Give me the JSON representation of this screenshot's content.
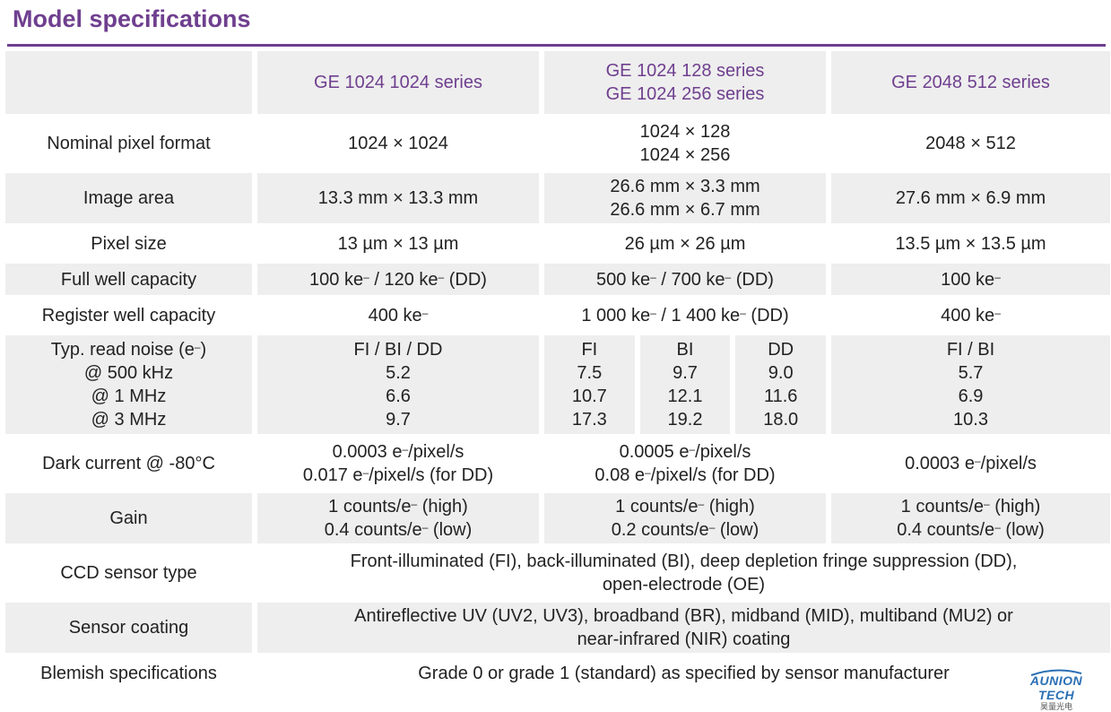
{
  "title": "Model specifications",
  "columns": [
    "GE 1024 1024 series",
    "GE 1024 128 series",
    "GE 1024 256 series",
    "GE 2048 512 series"
  ],
  "rows": {
    "pixel_format": {
      "label": "Nominal pixel format",
      "c1": "1024 × 1024",
      "c2a": "1024 × 128",
      "c2b": "1024 × 256",
      "c3": "2048 × 512"
    },
    "image_area": {
      "label": "Image area",
      "c1": "13.3 mm × 13.3 mm",
      "c2a": "26.6 mm × 3.3 mm",
      "c2b": "26.6 mm × 6.7 mm",
      "c3": "27.6 mm × 6.9 mm"
    },
    "pixel_size": {
      "label": "Pixel size",
      "c1": "13 µm × 13 µm",
      "c2": "26 µm × 26 µm",
      "c3": "13.5 µm × 13.5 µm"
    },
    "full_well": {
      "label": "Full well capacity",
      "c1a": "100 ke",
      "c1b": " / 120 ke",
      "c1c": " (DD)",
      "c2a": "500 ke",
      "c2b": " / 700 ke",
      "c2c": " (DD)",
      "c3": "100 ke"
    },
    "register_well": {
      "label": "Register well capacity",
      "c1": "400 ke",
      "c2a": "1 000 ke",
      "c2b": " / 1 400 ke",
      "c2c": " (DD)",
      "c3": "400 ke"
    },
    "read_noise": {
      "label_a": "Typ. read noise (e",
      "label_b": ")",
      "label_lines": [
        "@ 500 kHz",
        "@ 1 MHz",
        "@ 3 MHz"
      ],
      "c1": [
        "FI / BI / DD",
        "5.2",
        "6.6",
        "9.7"
      ],
      "c2_fi": [
        "FI",
        "7.5",
        "10.7",
        "17.3"
      ],
      "c2_bi": [
        "BI",
        "9.7",
        "12.1",
        "19.2"
      ],
      "c2_dd": [
        "DD",
        "9.0",
        "11.6",
        "18.0"
      ],
      "c3": [
        "FI / BI",
        "5.7",
        "6.9",
        "10.3"
      ]
    },
    "dark_current": {
      "label": "Dark current @ -80°C",
      "c1a": "0.0003 e",
      "c1a_s": "/pixel/s",
      "c1b": "0.017 e",
      "c1b_s": "/pixel/s (for DD)",
      "c2a": "0.0005 e",
      "c2a_s": "/pixel/s",
      "c2b": "0.08 e",
      "c2b_s": "/pixel/s (for DD)",
      "c3": "0.0003 e",
      "c3_s": "/pixel/s"
    },
    "gain": {
      "label": "Gain",
      "c1a": "1 counts/e",
      "c1a_s": " (high)",
      "c1b": "0.4 counts/e",
      "c1b_s": " (low)",
      "c2a": "1 counts/e",
      "c2a_s": " (high)",
      "c2b": "0.2 counts/e",
      "c2b_s": " (low)",
      "c3a": "1 counts/e",
      "c3a_s": " (high)",
      "c3b": "0.4 counts/e",
      "c3b_s": " (low)"
    },
    "sensor_type": {
      "label": "CCD sensor type",
      "v1": "Front-illuminated (FI), back-illuminated (BI), deep depletion fringe suppression (DD),",
      "v2": "open-electrode (OE)"
    },
    "coating": {
      "label": "Sensor coating",
      "v1": "Antireflective UV (UV2, UV3), broadband (BR), midband (MID), multiband (MU2) or",
      "v2": "near-infrared (NIR) coating"
    },
    "blemish": {
      "label": "Blemish specifications",
      "v": "Grade 0 or grade 1 (standard) as specified by sensor manufacturer"
    }
  },
  "superscript": "–",
  "logo": {
    "brand": "AUNION TECH",
    "sub": "昊量光电"
  },
  "colors": {
    "accent": "#6f3f8f",
    "shade": "#eeeeee"
  }
}
